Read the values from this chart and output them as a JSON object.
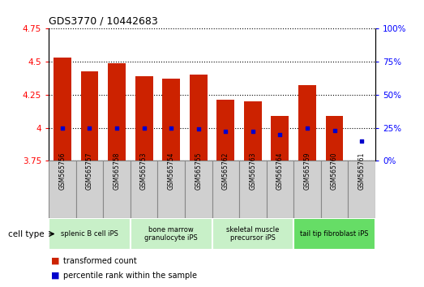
{
  "title": "GDS3770 / 10442683",
  "samples": [
    "GSM565756",
    "GSM565757",
    "GSM565758",
    "GSM565753",
    "GSM565754",
    "GSM565755",
    "GSM565762",
    "GSM565763",
    "GSM565764",
    "GSM565759",
    "GSM565760",
    "GSM565761"
  ],
  "transformed_counts": [
    4.53,
    4.43,
    4.49,
    4.39,
    4.37,
    4.4,
    4.21,
    4.2,
    4.09,
    4.32,
    4.09,
    3.75
  ],
  "percentile_ranks": [
    25,
    25,
    25,
    25,
    25,
    24,
    22,
    22,
    20,
    25,
    23,
    15
  ],
  "bar_bottom": 3.75,
  "ylim_left": [
    3.75,
    4.75
  ],
  "ylim_right": [
    0,
    100
  ],
  "yticks_left": [
    3.75,
    4.0,
    4.25,
    4.5,
    4.75
  ],
  "yticks_right": [
    0,
    25,
    50,
    75,
    100
  ],
  "ytick_labels_left": [
    "3.75",
    "4",
    "4.25",
    "4.5",
    "4.75"
  ],
  "ytick_labels_right": [
    "0%",
    "25%",
    "50%",
    "75%",
    "100%"
  ],
  "cell_type_groups": [
    {
      "label": "splenic B cell iPS",
      "start": 0,
      "end": 3,
      "color": "#c8f0c8"
    },
    {
      "label": "bone marrow\ngranulocyte iPS",
      "start": 3,
      "end": 6,
      "color": "#c8f0c8"
    },
    {
      "label": "skeletal muscle\nprecursor iPS",
      "start": 6,
      "end": 9,
      "color": "#c8f0c8"
    },
    {
      "label": "tail tip fibroblast iPS",
      "start": 9,
      "end": 12,
      "color": "#66dd66"
    }
  ],
  "bar_color": "#cc2200",
  "dot_color": "#0000cc",
  "grid_color": "#000000",
  "legend_items": [
    {
      "label": "transformed count",
      "color": "#cc2200"
    },
    {
      "label": "percentile rank within the sample",
      "color": "#0000cc"
    }
  ],
  "cell_type_label": "cell type",
  "bar_width": 0.65,
  "sample_box_color": "#d0d0d0",
  "sample_box_edge": "#888888"
}
